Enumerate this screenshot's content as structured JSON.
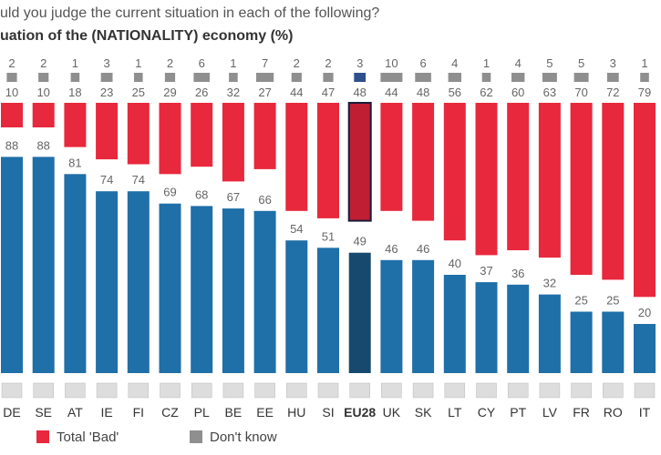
{
  "header": {
    "question": "uld you judge the current situation in each of the following?",
    "title": "uation of the (NATIONALITY) economy  (%)"
  },
  "colors": {
    "good": "#1f6fa8",
    "good_eu": "#17496f",
    "bad": "#e8283c",
    "bad_eu": "#bf1e33",
    "dk": "#8f8f8f",
    "dk_eu": "#2f4f8c",
    "label": "#666666"
  },
  "legend": {
    "bad_label": "Total 'Bad'",
    "dk_label": "Don't know"
  },
  "chart_data": {
    "type": "bar",
    "stacked": true,
    "categories": [
      "DE",
      "SE",
      "AT",
      "IE",
      "FI",
      "CZ",
      "PL",
      "BE",
      "EE",
      "HU",
      "SI",
      "EU28",
      "UK",
      "SK",
      "LT",
      "CY",
      "PT",
      "LV",
      "FR",
      "RO",
      "IT"
    ],
    "highlight": "EU28",
    "series": [
      {
        "name": "",
        "values": [
          88,
          88,
          81,
          74,
          74,
          69,
          68,
          67,
          66,
          54,
          51,
          49,
          46,
          46,
          40,
          37,
          36,
          32,
          25,
          25,
          20
        ]
      },
      {
        "name": "Total 'Bad'",
        "values": [
          10,
          10,
          18,
          23,
          25,
          29,
          26,
          32,
          27,
          44,
          47,
          48,
          44,
          48,
          56,
          62,
          60,
          63,
          70,
          72,
          79
        ]
      },
      {
        "name": "Don't know",
        "values": [
          2,
          2,
          1,
          3,
          1,
          2,
          6,
          1,
          7,
          2,
          2,
          3,
          10,
          6,
          4,
          1,
          4,
          5,
          5,
          3,
          1
        ]
      }
    ]
  }
}
